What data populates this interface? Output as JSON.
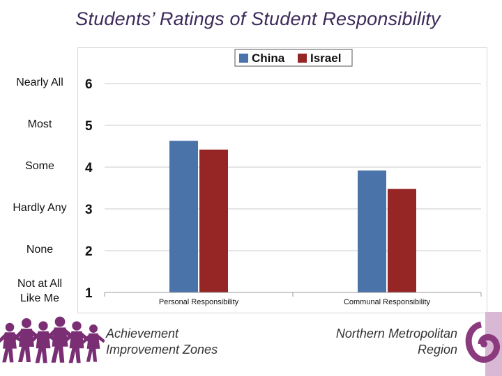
{
  "title": "Students’ Ratings of Student Responsibility",
  "rating_labels": [
    {
      "level": 6,
      "label_lines": [
        "Nearly All"
      ]
    },
    {
      "level": 5,
      "label_lines": [
        "Most"
      ]
    },
    {
      "level": 4,
      "label_lines": [
        "Some"
      ]
    },
    {
      "level": 3,
      "label_lines": [
        "Hardly Any"
      ]
    },
    {
      "level": 2,
      "label_lines": [
        "None"
      ]
    },
    {
      "level": 1,
      "label_lines": [
        "Not at All",
        "Like Me"
      ]
    }
  ],
  "chart_data": {
    "type": "bar",
    "categories": [
      "Personal Responsibility",
      "Communal Responsibility"
    ],
    "series": [
      {
        "name": "China",
        "values": [
          4.63,
          3.92
        ]
      },
      {
        "name": "Israel",
        "values": [
          4.42,
          3.48
        ]
      }
    ],
    "ylim": [
      1,
      6
    ],
    "yticks": [
      1,
      2,
      3,
      4,
      5,
      6
    ],
    "grid": true,
    "legend": "top-right",
    "colors": {
      "China": "#4a73aa",
      "Israel": "#962626"
    }
  },
  "footer": {
    "left_lines": [
      "Achievement",
      "Improvement Zones"
    ],
    "right_lines": [
      "Northern Metropolitan",
      "Region"
    ]
  },
  "logo_colors": {
    "kids": "#7a2e74",
    "region": "#8b3a7d"
  }
}
